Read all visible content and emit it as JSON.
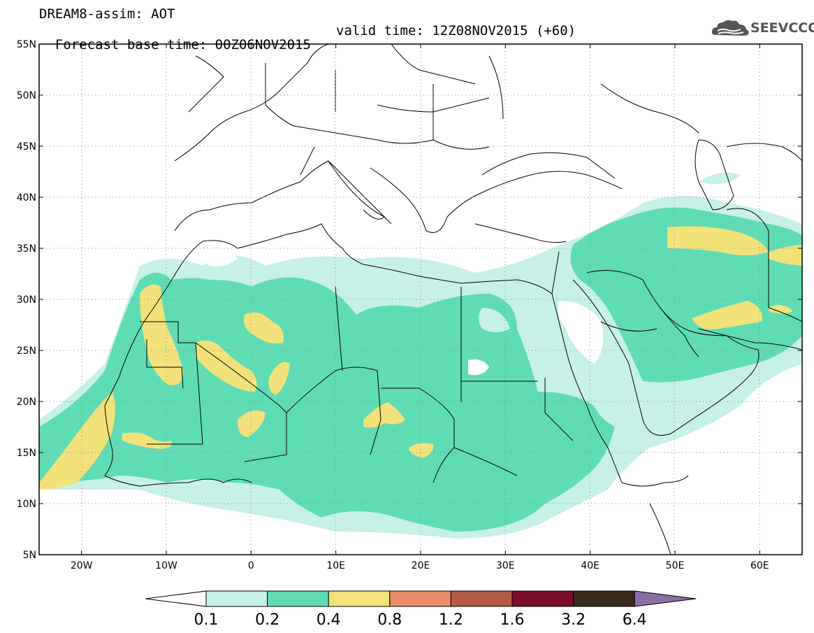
{
  "header": {
    "title": "DREAM8-assim: AOT",
    "base_time": "Forecast base time: 00Z06NOV2015",
    "valid_time": "valid time: 12Z08NOV2015 (+60)",
    "logo_text": "SEEVCCC"
  },
  "map": {
    "projection": "lat-lon",
    "lon_range": [
      -25,
      65
    ],
    "lat_range": [
      5,
      55
    ],
    "lat_ticks": [
      {
        "value": 55,
        "label": "55N"
      },
      {
        "value": 50,
        "label": "50N"
      },
      {
        "value": 45,
        "label": "45N"
      },
      {
        "value": 40,
        "label": "40N"
      },
      {
        "value": 35,
        "label": "35N"
      },
      {
        "value": 30,
        "label": "30N"
      },
      {
        "value": 25,
        "label": "25N"
      },
      {
        "value": 20,
        "label": "20N"
      },
      {
        "value": 15,
        "label": "15N"
      },
      {
        "value": 10,
        "label": "10N"
      },
      {
        "value": 5,
        "label": "5N"
      }
    ],
    "lon_ticks": [
      {
        "value": -20,
        "label": "20W"
      },
      {
        "value": -10,
        "label": "10W"
      },
      {
        "value": 0,
        "label": "0"
      },
      {
        "value": 10,
        "label": "10E"
      },
      {
        "value": 20,
        "label": "20E"
      },
      {
        "value": 30,
        "label": "30E"
      },
      {
        "value": 40,
        "label": "40E"
      },
      {
        "value": 50,
        "label": "50E"
      },
      {
        "value": 60,
        "label": "60E"
      }
    ],
    "grid": "dotted"
  },
  "colorbar": {
    "levels": [
      "0.1",
      "0.2",
      "0.4",
      "0.8",
      "1.2",
      "1.6",
      "3.2",
      "6.4"
    ],
    "under_color": "#ffffff",
    "colors": [
      "#c7f0e8",
      "#5fdcb4",
      "#f2e27a",
      "#e98c64",
      "#b45a46",
      "#7a0f2a",
      "#3c2a1a"
    ],
    "over_color": "#8c6ea6"
  }
}
